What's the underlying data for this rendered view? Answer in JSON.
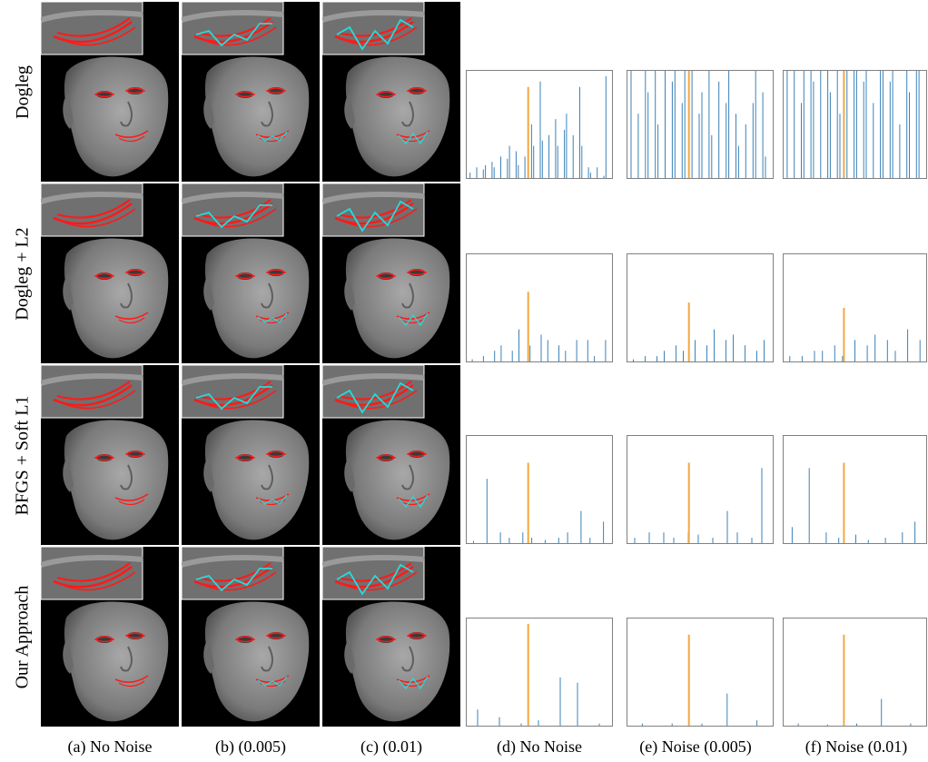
{
  "row_labels": [
    "Dogleg",
    "Dogleg + L2",
    "BFGS + Soft L1",
    "Our Approach"
  ],
  "captions": [
    "(a) No Noise",
    "(b) (0.005)",
    "(c) (0.01)",
    "(d) No Noise",
    "(e) Noise (0.005)",
    "(f) Noise (0.01)"
  ],
  "colors": {
    "background": "#000000",
    "face": "#8a8a8a",
    "reference_curve": "#ff1a1a",
    "fitted_curve": "#22dddd",
    "bar": "#3b82b8",
    "peak_bar": "#f5a742",
    "frame": "#808080"
  },
  "chart_data": [
    {
      "type": "bar",
      "row": "Dogleg",
      "column": "No Noise",
      "series": [
        {
          "name": "",
          "values": [
            0.05,
            0.1,
            0.08,
            0.12,
            0.15,
            0.1,
            0.2,
            0.18,
            0.3,
            0.25,
            0.12,
            0.2,
            0.5,
            0.3,
            0.9,
            0.35,
            0.4,
            0.55,
            0.3,
            0.45,
            0.6,
            0.4,
            0.85,
            0.3,
            0.1,
            0.05,
            0.1,
            0.02,
            0.95
          ]
        }
      ],
      "peak": 0.85
    },
    {
      "type": "bar",
      "row": "Dogleg",
      "column": "Noise (0.005)",
      "series": [
        {
          "name": "",
          "values": [
            1,
            0.6,
            1,
            0.8,
            1,
            0.5,
            1,
            0.9,
            1,
            0.7,
            1,
            1,
            0.6,
            0.8,
            1,
            0.4,
            0.9,
            0.7,
            1,
            0.6,
            0.3,
            0.5,
            0.7,
            1,
            0.8,
            0.2
          ]
        }
      ],
      "peak": 1.0
    },
    {
      "type": "bar",
      "row": "Dogleg",
      "column": "Noise (0.01)",
      "series": [
        {
          "name": "",
          "values": [
            1,
            1,
            0.7,
            1,
            1,
            0.9,
            1,
            1,
            0.8,
            1,
            0.6,
            1,
            1,
            1,
            0.9,
            1,
            0.7,
            1,
            1,
            0.9,
            1,
            0.5,
            1,
            0.8,
            1,
            1
          ]
        }
      ],
      "peak": 1.0
    },
    {
      "type": "bar",
      "row": "Dogleg + L2",
      "column": "No Noise",
      "series": [
        {
          "name": "",
          "values": [
            0.02,
            0.05,
            0.1,
            0.15,
            0.1,
            0.3,
            0.15,
            0.25,
            0.2,
            0.15,
            0.1,
            0.2,
            0.2,
            0.05,
            0.2
          ]
        }
      ],
      "peak": 0.65
    },
    {
      "type": "bar",
      "row": "Dogleg + L2",
      "column": "Noise (0.005)",
      "series": [
        {
          "name": "",
          "values": [
            0.02,
            0.05,
            0.05,
            0.1,
            0.15,
            0.1,
            0.2,
            0.15,
            0.3,
            0.2,
            0.25,
            0.15,
            0.1,
            0.2
          ]
        }
      ],
      "peak": 0.55
    },
    {
      "type": "bar",
      "row": "Dogleg + L2",
      "column": "Noise (0.01)",
      "series": [
        {
          "name": "",
          "values": [
            0.05,
            0.05,
            0.1,
            0.1,
            0.15,
            0.05,
            0.2,
            0.15,
            0.25,
            0.2,
            0.1,
            0.3,
            0.2
          ]
        }
      ],
      "peak": 0.5
    },
    {
      "type": "bar",
      "row": "BFGS + Soft L1",
      "column": "No Noise",
      "series": [
        {
          "name": "",
          "values": [
            0.02,
            0.6,
            0.1,
            0.05,
            0.1,
            0.05,
            0.03,
            0.05,
            0.1,
            0.3,
            0.05,
            0.2
          ]
        }
      ],
      "peak": 0.75
    },
    {
      "type": "bar",
      "row": "BFGS + Soft L1",
      "column": "Noise (0.005)",
      "series": [
        {
          "name": "",
          "values": [
            0.05,
            0.1,
            0.1,
            0.05,
            0.1,
            0.08,
            0.05,
            0.3,
            0.1,
            0.05,
            0.7
          ]
        }
      ],
      "peak": 0.75
    },
    {
      "type": "bar",
      "row": "BFGS + Soft L1",
      "column": "Noise (0.01)",
      "series": [
        {
          "name": "",
          "values": [
            0.15,
            0.7,
            0.1,
            0.05,
            0.08,
            0.03,
            0.05,
            0.1,
            0.2
          ]
        }
      ],
      "peak": 0.75
    },
    {
      "type": "bar",
      "row": "Our Approach",
      "column": "No Noise",
      "series": [
        {
          "name": "",
          "values": [
            0.15,
            0.08,
            0.02,
            0.05,
            0.45,
            0.4,
            0.02
          ]
        }
      ],
      "peak": 0.95
    },
    {
      "type": "bar",
      "row": "Our Approach",
      "column": "Noise (0.005)",
      "series": [
        {
          "name": "",
          "values": [
            0.02,
            0.02,
            0.02,
            0.3,
            0.05
          ]
        }
      ],
      "peak": 0.85
    },
    {
      "type": "bar",
      "row": "Our Approach",
      "column": "Noise (0.01)",
      "series": [
        {
          "name": "",
          "values": [
            0.02,
            0.01,
            0.02,
            0.25,
            0.02
          ]
        }
      ],
      "peak": 0.85
    }
  ]
}
